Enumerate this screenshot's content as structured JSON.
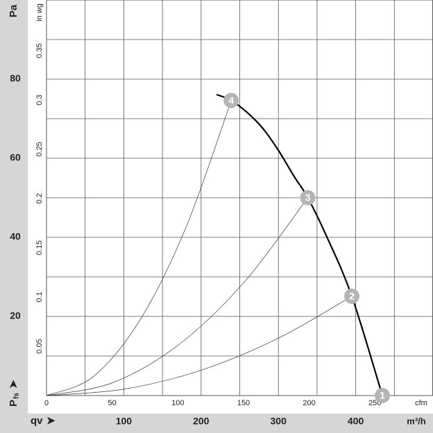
{
  "chart_data": {
    "type": "line",
    "x_label": "qv",
    "x_unit": "m³/h",
    "y_label": {
      "main": "P",
      "sub": "fs"
    },
    "y_unit": "Pa",
    "x2_unit": "cfm",
    "y2_unit": "in wg",
    "xlim": [
      0,
      500
    ],
    "ylim": [
      0,
      100
    ],
    "xticks": [
      100,
      200,
      300,
      400
    ],
    "yticks": [
      20,
      40,
      60,
      80
    ],
    "xgrid": [
      50,
      100,
      150,
      200,
      250,
      300,
      350,
      400,
      450
    ],
    "ygrid": [
      10,
      20,
      30,
      40,
      50,
      60,
      70,
      80,
      90
    ],
    "x2lim": [
      0,
      294.3
    ],
    "x2ticks": [
      0,
      50,
      100,
      150,
      200,
      250
    ],
    "y2lim": [
      0,
      0.4015
    ],
    "y2ticks": [
      0.05,
      0.1,
      0.15,
      0.2,
      0.25,
      0.3,
      0.35
    ],
    "grid": true,
    "series": [
      {
        "color": "#000000",
        "width": 2.2,
        "x": [
          220,
          239,
          260,
          280,
          300,
          320,
          338,
          362,
          395,
          434.5
        ],
        "values": [
          76.1,
          74.6,
          71.5,
          67.5,
          62,
          55.5,
          50,
          40.4,
          25.1,
          0
        ]
      },
      {
        "color": "#333333",
        "width": 0.7,
        "x": [
          0,
          100,
          200,
          300,
          395
        ],
        "values": [
          0,
          1.6,
          6.4,
          14.5,
          25.1
        ]
      },
      {
        "color": "#333333",
        "width": 0.7,
        "x": [
          0,
          85,
          170,
          255,
          338
        ],
        "values": [
          0,
          3.2,
          12.7,
          28.5,
          50
        ]
      },
      {
        "color": "#333333",
        "width": 0.7,
        "x": [
          0,
          60,
          120,
          180,
          239
        ],
        "values": [
          0,
          4.7,
          18.8,
          42.3,
          74.6
        ]
      }
    ],
    "points": [
      {
        "label": "1",
        "x": 434.5,
        "y": 0
      },
      {
        "label": "2",
        "x": 395,
        "y": 25.1
      },
      {
        "label": "3",
        "x": 338,
        "y": 50
      },
      {
        "label": "4",
        "x": 239,
        "y": 74.6
      }
    ],
    "marker_color": "#b4b4b4"
  }
}
